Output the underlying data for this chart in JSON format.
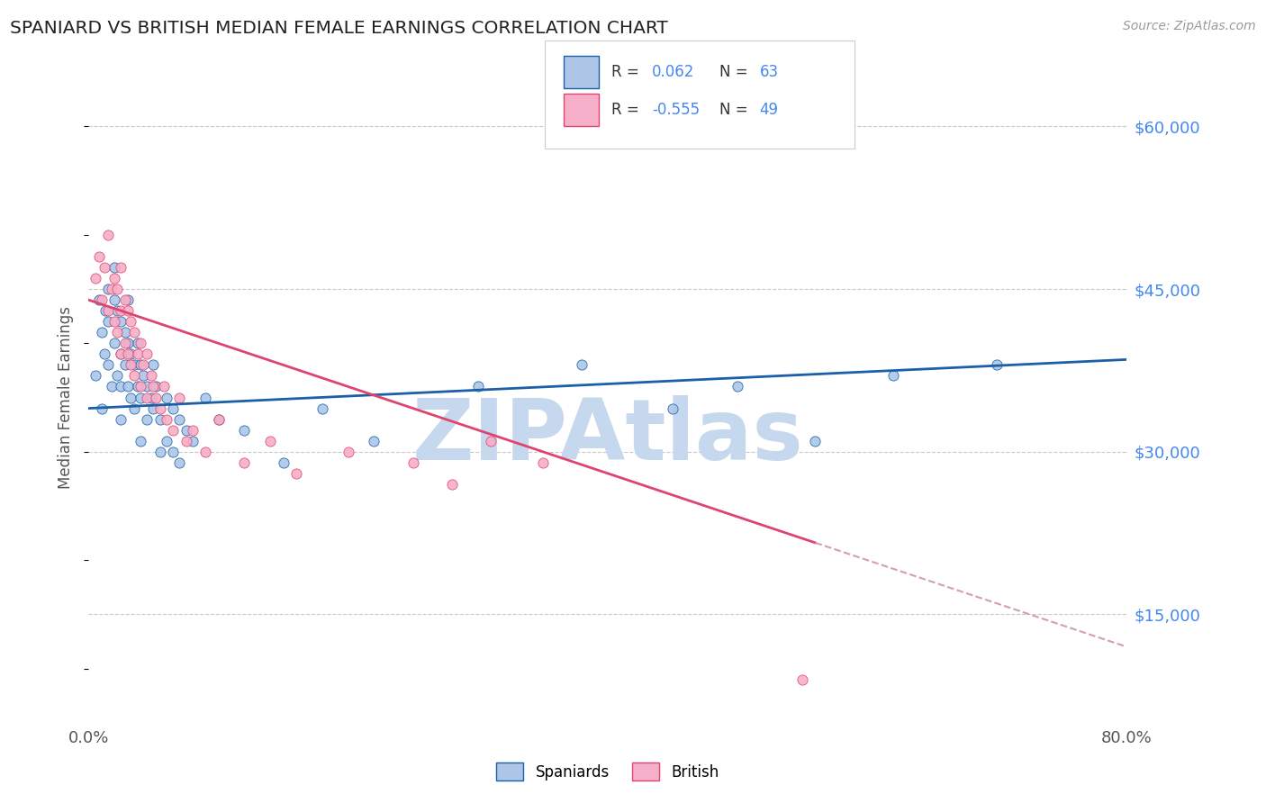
{
  "title": "SPANIARD VS BRITISH MEDIAN FEMALE EARNINGS CORRELATION CHART",
  "source": "Source: ZipAtlas.com",
  "ylabel": "Median Female Earnings",
  "xlim": [
    0.0,
    0.8
  ],
  "ylim": [
    5000,
    65000
  ],
  "yticks": [
    15000,
    30000,
    45000,
    60000
  ],
  "ytick_labels": [
    "$15,000",
    "$30,000",
    "$45,000",
    "$60,000"
  ],
  "xticks": [
    0.0,
    0.1,
    0.2,
    0.3,
    0.4,
    0.5,
    0.6,
    0.7,
    0.8
  ],
  "xtick_labels": [
    "0.0%",
    "",
    "",
    "",
    "",
    "",
    "",
    "",
    "80.0%"
  ],
  "spaniards_color": "#adc6e8",
  "british_color": "#f5afc8",
  "trend_spaniards_color": "#1a5fa8",
  "trend_british_color": "#e0446e",
  "trend_british_dashed_color": "#d0a0b0",
  "R_spaniards": 0.062,
  "N_spaniards": 63,
  "R_british": -0.555,
  "N_british": 49,
  "background_color": "#ffffff",
  "grid_color": "#c8c8c8",
  "title_color": "#222222",
  "axis_label_color": "#555555",
  "tick_color_right": "#4488ee",
  "watermark_color": "#c5d8ee",
  "watermark_text": "ZIPAtlas",
  "legend_border_color": "#cccccc",
  "spaniards_x": [
    0.005,
    0.008,
    0.01,
    0.01,
    0.012,
    0.013,
    0.015,
    0.015,
    0.015,
    0.018,
    0.02,
    0.02,
    0.02,
    0.022,
    0.022,
    0.025,
    0.025,
    0.025,
    0.025,
    0.028,
    0.028,
    0.03,
    0.03,
    0.03,
    0.032,
    0.032,
    0.035,
    0.035,
    0.038,
    0.038,
    0.04,
    0.04,
    0.04,
    0.042,
    0.045,
    0.045,
    0.048,
    0.05,
    0.05,
    0.052,
    0.055,
    0.055,
    0.06,
    0.06,
    0.065,
    0.065,
    0.07,
    0.07,
    0.075,
    0.08,
    0.09,
    0.1,
    0.12,
    0.15,
    0.18,
    0.22,
    0.3,
    0.38,
    0.45,
    0.5,
    0.56,
    0.62,
    0.7
  ],
  "spaniards_y": [
    37000,
    44000,
    41000,
    34000,
    39000,
    43000,
    45000,
    42000,
    38000,
    36000,
    47000,
    44000,
    40000,
    43000,
    37000,
    42000,
    39000,
    36000,
    33000,
    41000,
    38000,
    44000,
    40000,
    36000,
    39000,
    35000,
    38000,
    34000,
    40000,
    36000,
    38000,
    35000,
    31000,
    37000,
    36000,
    33000,
    35000,
    38000,
    34000,
    36000,
    33000,
    30000,
    35000,
    31000,
    34000,
    30000,
    33000,
    29000,
    32000,
    31000,
    35000,
    33000,
    32000,
    29000,
    34000,
    31000,
    36000,
    38000,
    34000,
    36000,
    31000,
    37000,
    38000
  ],
  "british_x": [
    0.005,
    0.008,
    0.01,
    0.012,
    0.015,
    0.015,
    0.018,
    0.02,
    0.02,
    0.022,
    0.022,
    0.025,
    0.025,
    0.025,
    0.028,
    0.028,
    0.03,
    0.03,
    0.032,
    0.032,
    0.035,
    0.035,
    0.038,
    0.04,
    0.04,
    0.042,
    0.045,
    0.045,
    0.048,
    0.05,
    0.052,
    0.055,
    0.058,
    0.06,
    0.065,
    0.07,
    0.075,
    0.08,
    0.09,
    0.1,
    0.12,
    0.14,
    0.16,
    0.2,
    0.25,
    0.28,
    0.31,
    0.35,
    0.55
  ],
  "british_y": [
    46000,
    48000,
    44000,
    47000,
    50000,
    43000,
    45000,
    46000,
    42000,
    45000,
    41000,
    47000,
    43000,
    39000,
    44000,
    40000,
    43000,
    39000,
    42000,
    38000,
    41000,
    37000,
    39000,
    40000,
    36000,
    38000,
    39000,
    35000,
    37000,
    36000,
    35000,
    34000,
    36000,
    33000,
    32000,
    35000,
    31000,
    32000,
    30000,
    33000,
    29000,
    31000,
    28000,
    30000,
    29000,
    27000,
    31000,
    29000,
    9000
  ],
  "trend_british_solid_end": 0.56
}
